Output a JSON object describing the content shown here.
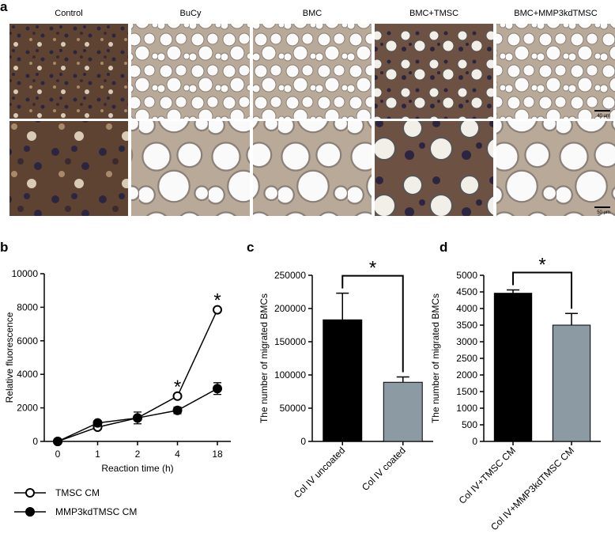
{
  "panel_a": {
    "label": "a",
    "columns": [
      "Control",
      "BuCy",
      "BMC",
      "BMC+TMSC",
      "BMC+MMP3kdTMSC"
    ],
    "scale_bars": [
      "40 μm",
      "50 μm"
    ]
  },
  "chart_data": [
    {
      "type": "line",
      "panel": "b",
      "x_label": "Reaction time (h)",
      "y_label": "Relative fluorescence",
      "categories": [
        "0",
        "1",
        "2",
        "4",
        "18"
      ],
      "series": [
        {
          "name": "TMSC CM",
          "color": "#000000",
          "marker": "open",
          "values": [
            0,
            850,
            1400,
            2700,
            7850
          ],
          "errors": [
            0,
            80,
            100,
            120,
            100
          ]
        },
        {
          "name": "MMP3kdTMSC CM",
          "color": "#000000",
          "marker": "filled",
          "values": [
            0,
            1100,
            1400,
            1850,
            3150
          ],
          "errors": [
            0,
            100,
            350,
            200,
            350
          ]
        }
      ],
      "ylim": [
        0,
        10000
      ],
      "yticks": [
        0,
        2000,
        4000,
        6000,
        8000,
        10000
      ],
      "annotations": [
        "*",
        "*"
      ],
      "legend": "bottom"
    },
    {
      "type": "bar",
      "panel": "c",
      "y_label": "The number of migrated BMCs",
      "categories": [
        "Col IV uncoated",
        "Col IV coated"
      ],
      "values": [
        183000,
        89000
      ],
      "errors": [
        40000,
        8000
      ],
      "colors": [
        "#000000",
        "#8c9ba3"
      ],
      "ylim": [
        0,
        250000
      ],
      "yticks": [
        0,
        50000,
        100000,
        150000,
        200000,
        250000
      ],
      "significance": "*"
    },
    {
      "type": "bar",
      "panel": "d",
      "y_label": "The number of migrated BMCs",
      "categories": [
        "Col IV+TMSC CM",
        "Col IV+MMP3kdTMSC CM"
      ],
      "values": [
        4460,
        3500
      ],
      "errors": [
        100,
        350
      ],
      "colors": [
        "#000000",
        "#8c9ba3"
      ],
      "ylim": [
        0,
        5000
      ],
      "yticks": [
        0,
        500,
        1000,
        1500,
        2000,
        2500,
        3000,
        3500,
        4000,
        4500,
        5000
      ],
      "significance": "*"
    }
  ]
}
